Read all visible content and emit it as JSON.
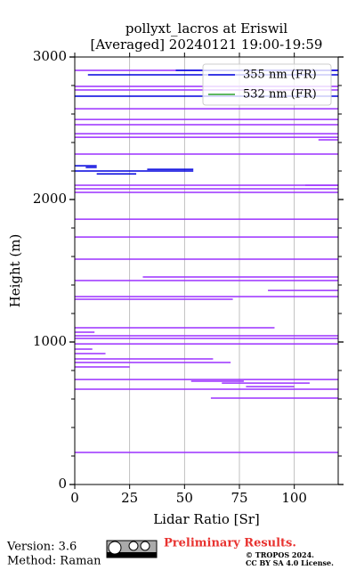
{
  "chart_data": {
    "type": "profile",
    "title": "pollyxt_lacros at Eriswil",
    "subtitle": "[Averaged] 20240121 19:00-19:59",
    "xlabel": "Lidar Ratio [Sr]",
    "ylabel": "Height (m)",
    "xlim": [
      0,
      120
    ],
    "xticks": [
      0,
      25,
      50,
      75,
      100
    ],
    "ylim": [
      0,
      3000
    ],
    "yticks": [
      0,
      1000,
      2000,
      3000
    ],
    "yticks_minor": [
      200,
      400,
      600,
      800,
      1200,
      1400,
      1600,
      1800,
      2200,
      2400,
      2600,
      2800
    ],
    "grid": "x",
    "legend": "upper right",
    "series": [
      {
        "name": "355 nm (FR)",
        "color": "#0000dd",
        "x": [
          46,
          120,
          null,
          6,
          120,
          null,
          0,
          120,
          null,
          0,
          10,
          null,
          5,
          10,
          null,
          33,
          54,
          null,
          0,
          54,
          null,
          10,
          28
        ],
        "y": [
          2906,
          2906,
          null,
          2875,
          2875,
          null,
          2725,
          2725,
          null,
          2237,
          2237,
          null,
          2225,
          2225,
          null,
          2212,
          2212,
          null,
          2200,
          2200,
          null,
          2180,
          2180
        ]
      },
      {
        "name": "532 nm (FR)",
        "color": "#2ca02c",
        "x": [],
        "y": []
      }
    ],
    "error_bars": {
      "color": "#9b30ff",
      "y": [
        2906,
        2794,
        2769,
        2637,
        2562,
        2525,
        2462,
        2437,
        2419,
        2319,
        2100,
        2100,
        2075,
        2050,
        1862,
        1737,
        1581,
        1456,
        1431,
        1362,
        1319,
        1300,
        1100,
        1069,
        1044,
        1025,
        987,
        950,
        919,
        881,
        856,
        825,
        737,
        725,
        712,
        687,
        669,
        606,
        225
      ],
      "x_low": [
        0,
        0,
        0,
        0,
        0,
        0,
        0,
        0,
        111,
        0,
        0,
        105,
        0,
        0,
        0,
        0,
        0,
        31,
        0,
        88,
        0,
        0,
        0,
        0,
        0,
        0,
        0,
        0,
        0,
        0,
        0,
        0,
        0,
        53,
        67,
        78,
        0,
        62,
        0
      ],
      "x_high": [
        120,
        120,
        120,
        120,
        120,
        120,
        120,
        120,
        120,
        120,
        120,
        120,
        120,
        120,
        120,
        120,
        120,
        120,
        120,
        120,
        120,
        72,
        91,
        9,
        120,
        120,
        120,
        8,
        14,
        63,
        71,
        25,
        120,
        77,
        107,
        100,
        120,
        120,
        120
      ]
    }
  },
  "footer": {
    "version": "Version: 3.6",
    "method": "Method: Raman",
    "status": "Preliminary Results.",
    "copyright": "© TROPOS 2024.",
    "license": "CC BY SA 4.0 License."
  }
}
